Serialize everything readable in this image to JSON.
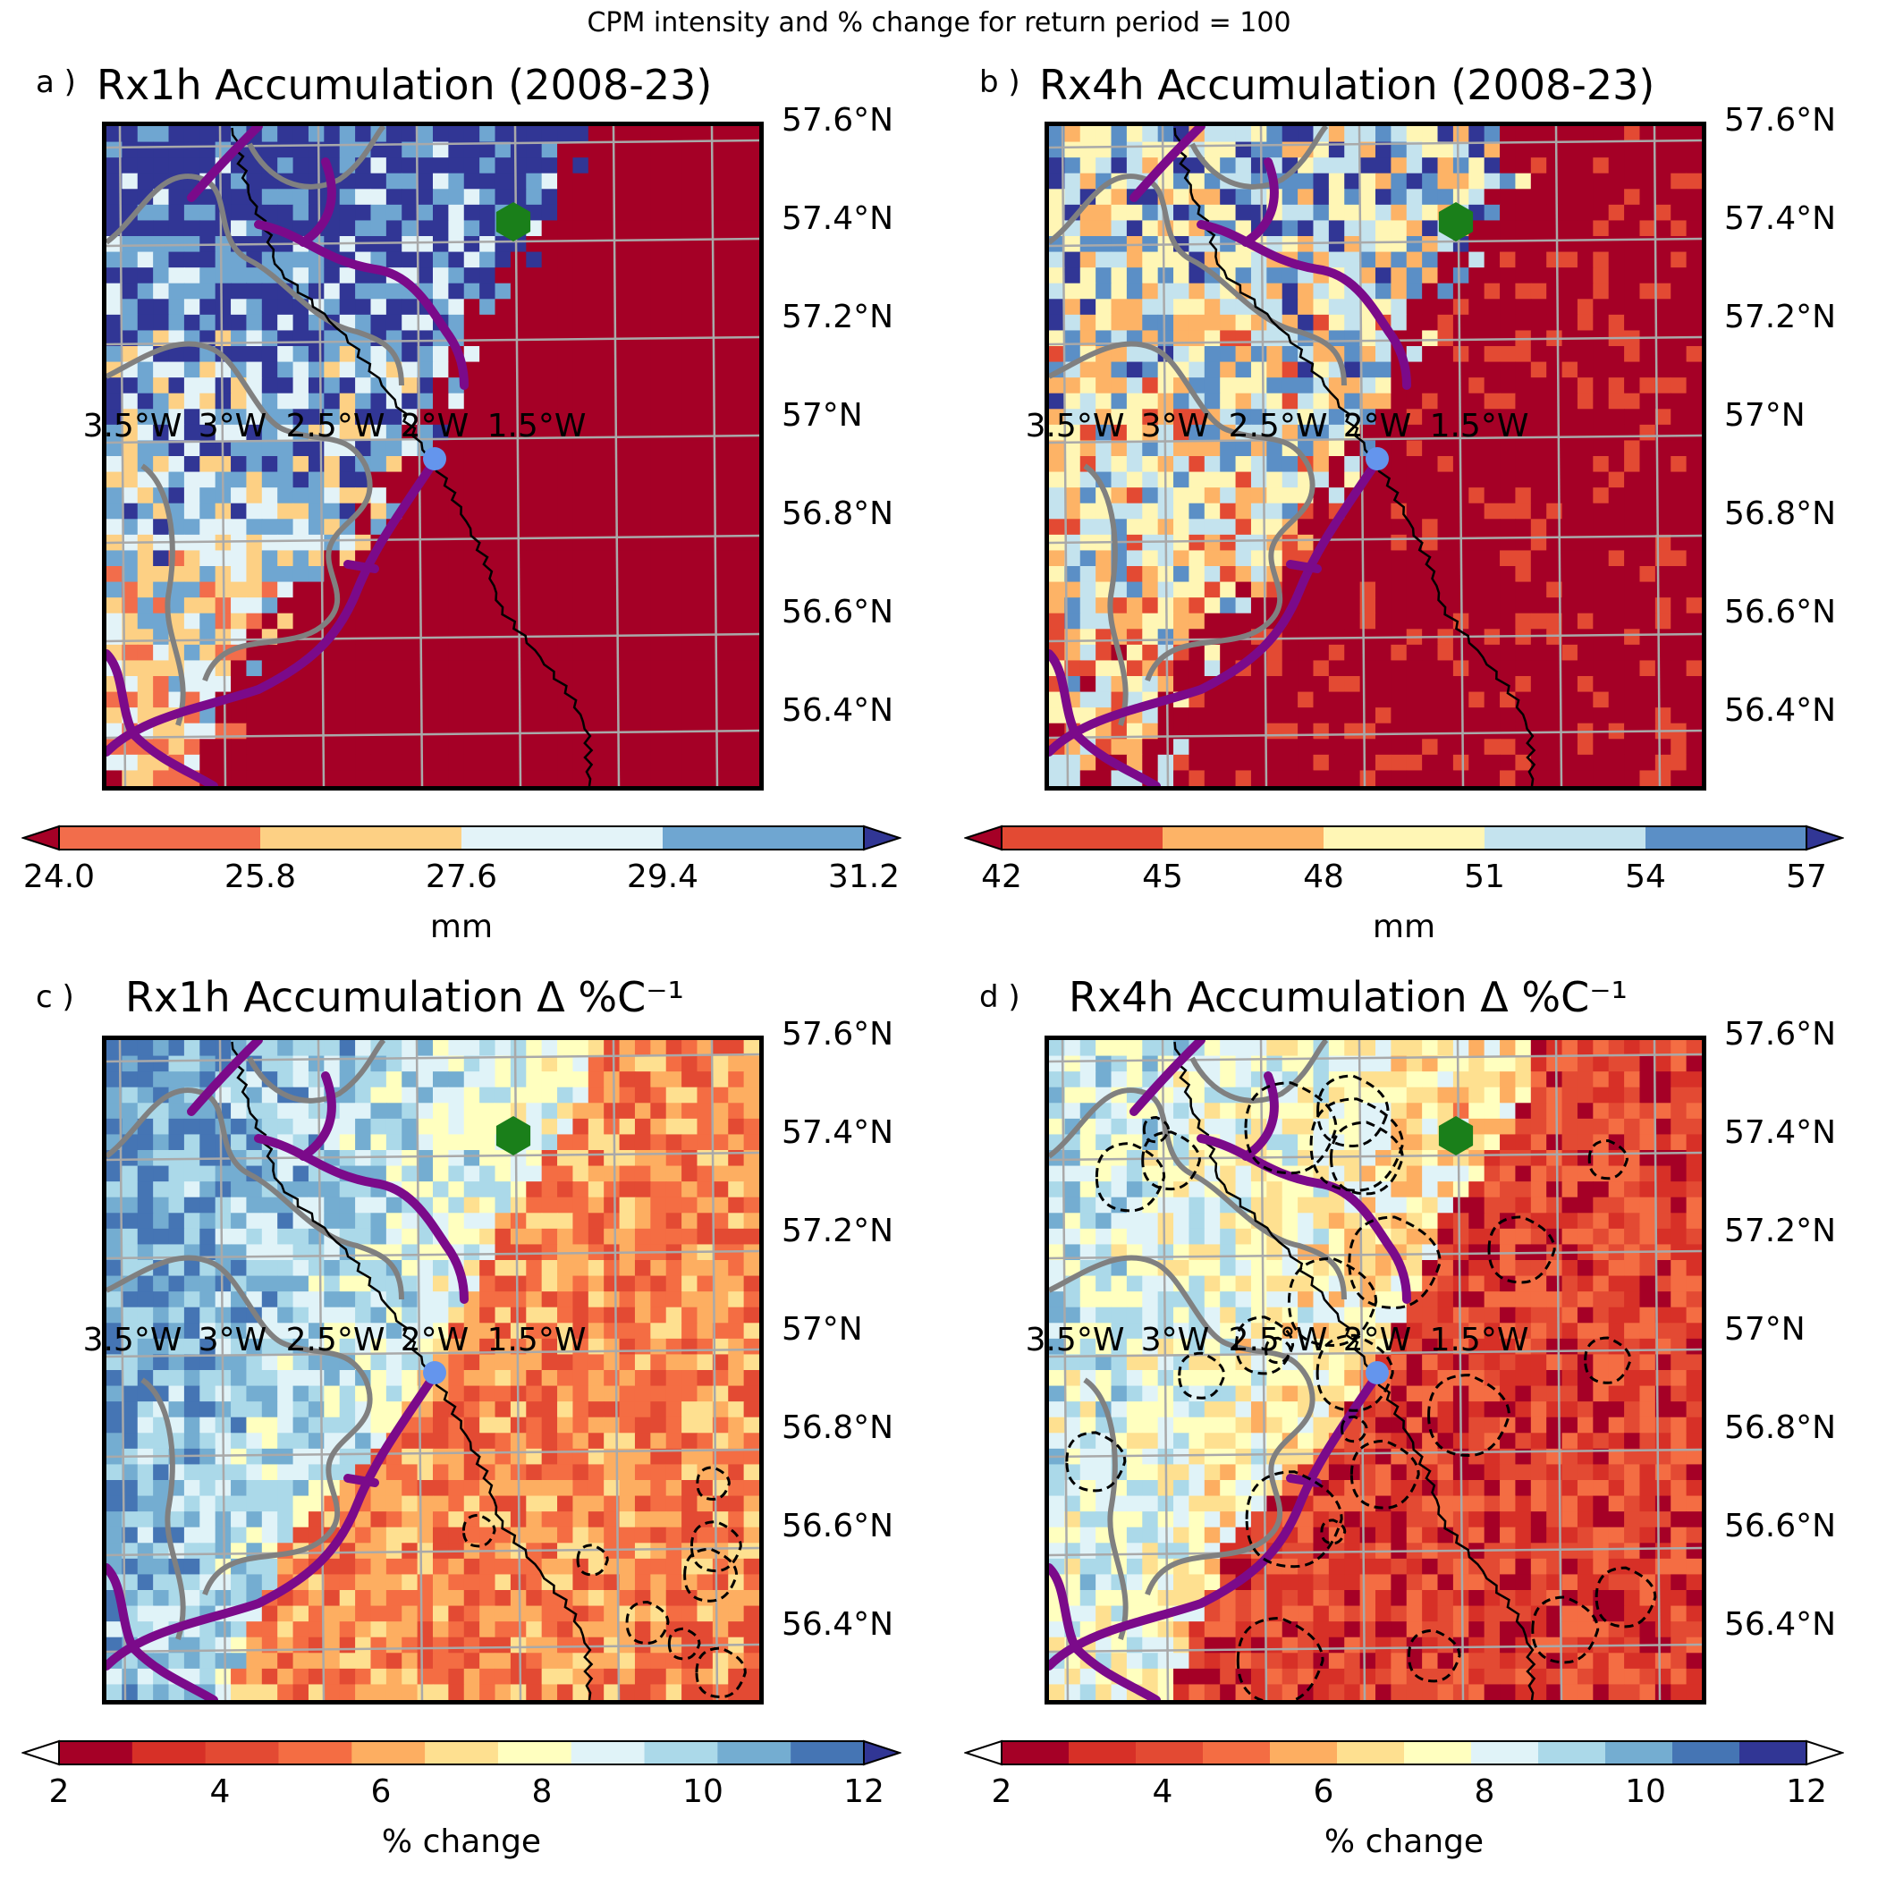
{
  "figure": {
    "suptitle": "CPM intensity and % change for return period = 100"
  },
  "panels": [
    {
      "id": "a",
      "letter": "a )",
      "title": "Rx1h Accumulation (2008-23)",
      "mode": "intensity",
      "colorbar": {
        "ticks": [
          "24.0",
          "25.8",
          "27.6",
          "29.4",
          "31.2"
        ],
        "label": "mm",
        "colors": [
          "#f26d4b",
          "#fdd084",
          "#e3f3f8",
          "#6fa6d1"
        ],
        "under": "#a50026",
        "over": "#313695"
      }
    },
    {
      "id": "b",
      "letter": "b )",
      "title": "Rx4h Accumulation (2008-23)",
      "mode": "intensity",
      "colorbar": {
        "ticks": [
          "42",
          "45",
          "48",
          "51",
          "54",
          "57"
        ],
        "label": "mm",
        "colors": [
          "#e34a33",
          "#fdb366",
          "#fff6b5",
          "#c4e3ee",
          "#5b8fc6"
        ],
        "under": "#a50026",
        "over": "#313695"
      }
    },
    {
      "id": "c",
      "letter": "c )",
      "title": "Rx1h Accumulation Δ %C⁻¹",
      "mode": "change",
      "colorbar": {
        "ticks": [
          "2",
          "4",
          "6",
          "8",
          "10",
          "12"
        ],
        "label": "% change",
        "colors": [
          "#a50026",
          "#d73027",
          "#e34a33",
          "#f46d43",
          "#fdae61",
          "#fee090",
          "#ffffbf",
          "#e0f3f8",
          "#abd9e9",
          "#74add1",
          "#4575b4"
        ],
        "under": "#ffffff",
        "over": "#313695"
      }
    },
    {
      "id": "d",
      "letter": "d )",
      "title": "Rx4h Accumulation Δ %C⁻¹",
      "mode": "change",
      "colorbar": {
        "ticks": [
          "2",
          "4",
          "6",
          "8",
          "10",
          "12"
        ],
        "label": "% change",
        "colors": [
          "#a50026",
          "#d73027",
          "#e34a33",
          "#f46d43",
          "#fdae61",
          "#fee090",
          "#ffffbf",
          "#e0f3f8",
          "#abd9e9",
          "#74add1",
          "#4575b4",
          "#313695"
        ],
        "under": "#ffffff",
        "over": "#ffffff"
      }
    }
  ],
  "axes": {
    "lat_labels": [
      "57.6°N",
      "57.4°N",
      "57.2°N",
      "57°N",
      "56.8°N",
      "56.6°N",
      "56.4°N"
    ],
    "lon_labels": [
      "3.5°W",
      "3°W",
      "2.5°W",
      "2°W",
      "1.5°W"
    ]
  },
  "markers": {
    "city_color": "#6495ed",
    "site_color": "#1a7f1a",
    "river_color": "#7b0a8a",
    "boundary_color": "#808080"
  }
}
